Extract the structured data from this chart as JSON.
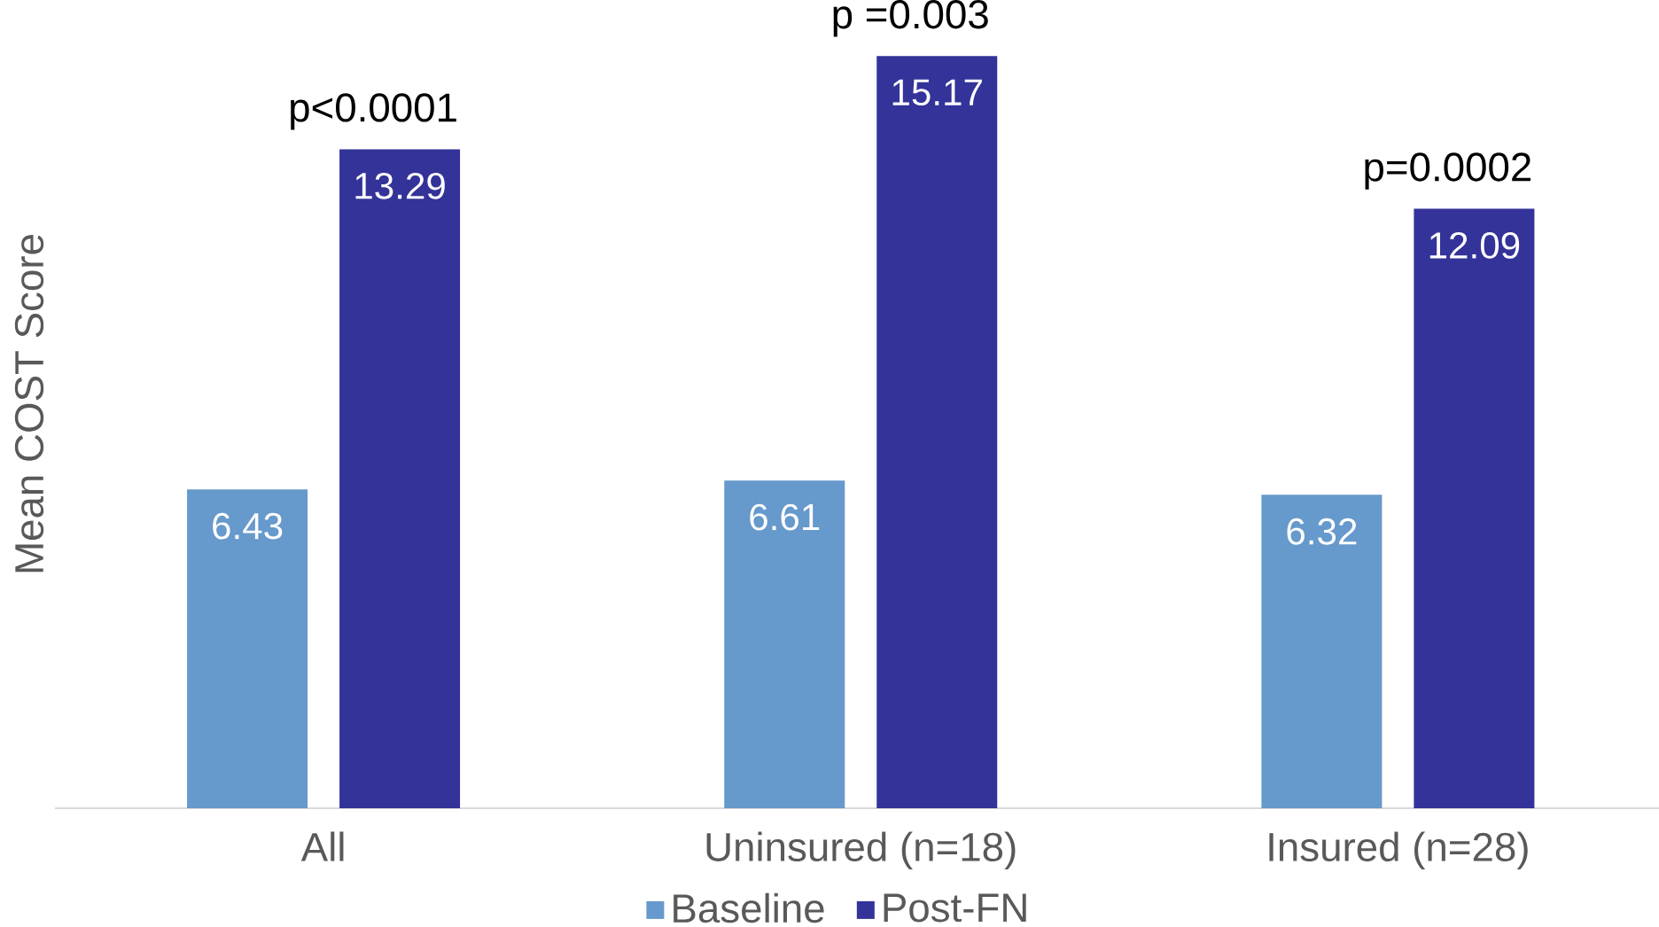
{
  "chart_data": {
    "type": "bar",
    "ylabel": "Mean COST Score",
    "categories": [
      "All",
      "Uninsured (n=18)",
      "Insured (n=28)"
    ],
    "series": [
      {
        "name": "Baseline",
        "color": "#6699cc",
        "values": [
          6.43,
          6.61,
          6.32
        ]
      },
      {
        "name": "Post-FN",
        "color": "#333399",
        "values": [
          13.29,
          15.17,
          12.09
        ]
      }
    ],
    "data_labels": true,
    "legend": "bottom",
    "grid": false,
    "annotations": [
      "p<0.0001",
      "p =0.003",
      "p=0.0002"
    ]
  }
}
